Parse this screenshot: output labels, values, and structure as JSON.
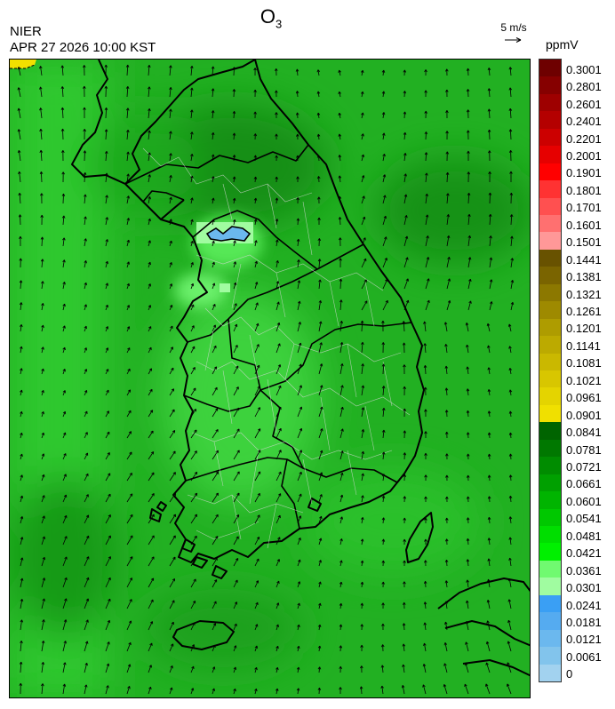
{
  "header": {
    "pollutant": "O",
    "pollutant_sub": "3",
    "agency": "NIER",
    "datetime": "APR 27 2026 10:00 KST",
    "wind_ref_label": "5 m/s",
    "unit_label": "ppmV"
  },
  "legend": {
    "labels": [
      "0.3001",
      "0.2801",
      "0.2601",
      "0.2401",
      "0.2201",
      "0.2001",
      "0.1901",
      "0.1801",
      "0.1701",
      "0.1601",
      "0.1501",
      "0.1441",
      "0.1381",
      "0.1321",
      "0.1261",
      "0.1201",
      "0.1141",
      "0.1081",
      "0.1021",
      "0.0961",
      "0.0901",
      "0.0841",
      "0.0781",
      "0.0721",
      "0.0661",
      "0.0601",
      "0.0541",
      "0.0481",
      "0.0421",
      "0.0361",
      "0.0301",
      "0.0241",
      "0.0181",
      "0.0121",
      "0.0061",
      "0"
    ],
    "colors": [
      "#6e0000",
      "#860000",
      "#9e0000",
      "#b40000",
      "#cc0000",
      "#e60000",
      "#ff0000",
      "#ff3232",
      "#ff5050",
      "#ff7070",
      "#ff9898",
      "#685200",
      "#7a6400",
      "#8c7800",
      "#9e8a00",
      "#ae9c00",
      "#bcaa00",
      "#cab800",
      "#d8c600",
      "#e4d400",
      "#f0e000",
      "#006400",
      "#007800",
      "#008c00",
      "#00a000",
      "#00b400",
      "#00c800",
      "#00de00",
      "#00f000",
      "#70fa70",
      "#a0fca0",
      "#3a9ff4",
      "#55abf0",
      "#6bb8ee",
      "#82c4ec",
      "#a2d2ef"
    ]
  },
  "map": {
    "base_color": "#22b022",
    "high_ozone_color": "#00ee00",
    "low_ozone_color": "#a0fca0",
    "very_low_color": "#6bb8ee",
    "coast_color": "#000000"
  }
}
